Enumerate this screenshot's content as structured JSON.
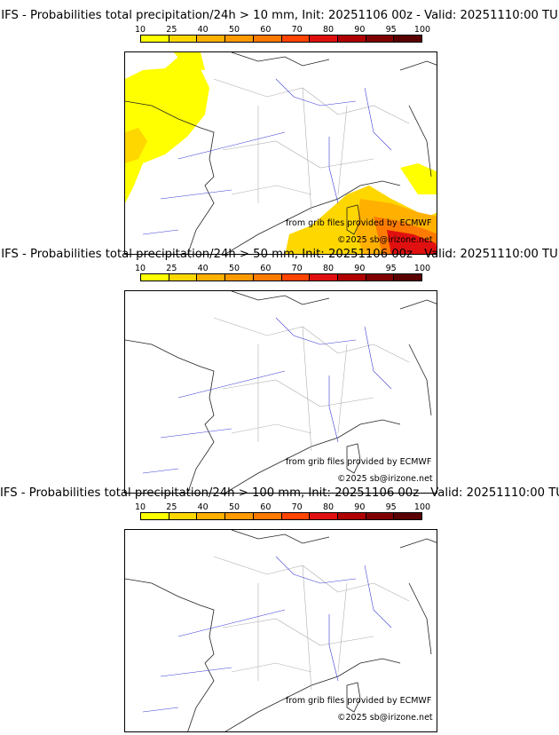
{
  "panels": [
    {
      "title": "IFS - Probabilities total precipitation/24h > 10 mm, Init: 20251106 00z - Valid: 20251110:00 TU"
    },
    {
      "title": "IFS - Probabilities total precipitation/24h > 50 mm, Init: 20251106 00z - Valid: 20251110:00 TU"
    },
    {
      "title": "IFS - Probabilities total precipitation/24h > 100 mm, Init: 20251106 00z - Valid: 20251110:00 TU"
    }
  ],
  "legend": {
    "labels": [
      "10",
      "25",
      "40",
      "50",
      "60",
      "70",
      "80",
      "90",
      "95",
      "100"
    ],
    "colors": [
      "#ffff00",
      "#ffd700",
      "#ffb000",
      "#ff9a00",
      "#ff7a00",
      "#ff4500",
      "#e01010",
      "#b00000",
      "#800000",
      "#5a0000"
    ]
  },
  "credits": {
    "source": "from grib files provided by ECMWF",
    "copyright": "©2025 sb@irizone.net"
  }
}
